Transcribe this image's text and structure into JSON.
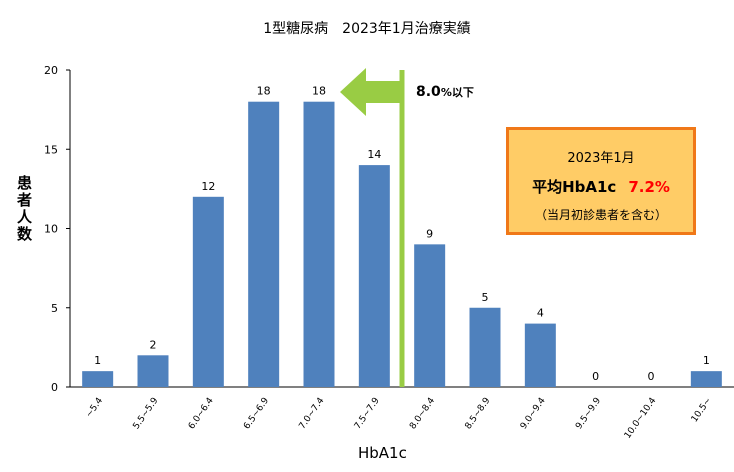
{
  "title": "1型糖尿病　2023年1月治療実績",
  "chart_data": {
    "type": "bar",
    "title": "1型糖尿病　2023年1月治療実績",
    "xlabel": "HbA1c",
    "ylabel": "患者人数",
    "categories": [
      "~5.4",
      "5.5~5.9",
      "6.0~6.4",
      "6.5~6.9",
      "7.0~7.4",
      "7.5~7.9",
      "8.0~8.4",
      "8.5~8.9",
      "9.0~9.4",
      "9.5~9.9",
      "10.0~10.4",
      "10.5~"
    ],
    "values": [
      1,
      2,
      12,
      18,
      18,
      14,
      9,
      5,
      4,
      0,
      0,
      1
    ],
    "ylim": [
      0,
      20
    ],
    "yticks": [
      0,
      5,
      10,
      15,
      20
    ],
    "grid": false,
    "bar_color": "#4f81bd",
    "threshold": {
      "position": "between 7.5~7.9 and 8.0~8.4",
      "label_value": "8.0",
      "label_suffix": "%以下",
      "color": "#99cc44"
    }
  },
  "info_box": {
    "line1": "2023年1月",
    "line2_label": "平均HbA1c",
    "line2_value": "7.2%",
    "line3": "（当月初診患者を含む）",
    "fill_color": "#ffcc66",
    "border_color": "#f07818",
    "value_color": "#ff0000"
  }
}
